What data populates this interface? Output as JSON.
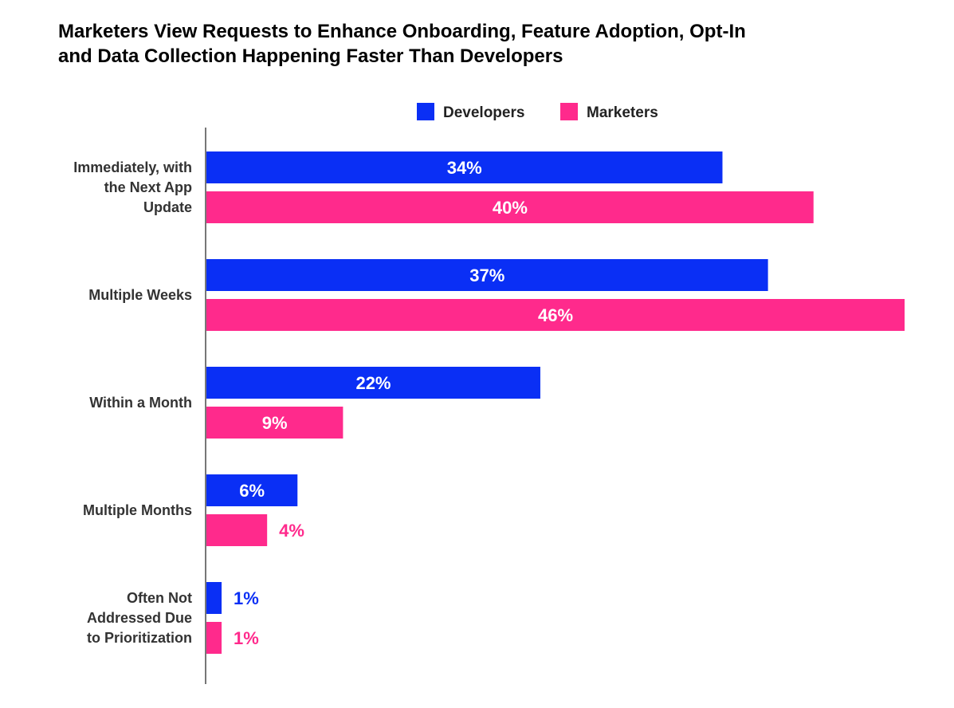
{
  "chart_data": {
    "type": "bar",
    "orientation": "horizontal",
    "title_lines": [
      "Marketers View Requests to Enhance Onboarding, Feature Adoption, Opt-In",
      "and Data Collection Happening Faster Than Developers"
    ],
    "categories": [
      [
        "Immediately, with",
        "the Next App",
        "Update"
      ],
      [
        "Multiple  Weeks"
      ],
      [
        "Within a Month"
      ],
      [
        "Multiple Months"
      ],
      [
        "Often Not",
        "Addressed Due",
        "to Prioritization"
      ]
    ],
    "series": [
      {
        "name": "Developers",
        "color": "#0a2ff5",
        "values": [
          34,
          37,
          22,
          6,
          1
        ],
        "labels": [
          "34%",
          "37%",
          "22%",
          "6%",
          "1%"
        ]
      },
      {
        "name": "Marketers",
        "color": "#ff2a8c",
        "values": [
          40,
          46,
          9,
          4,
          1
        ],
        "labels": [
          "40%",
          "46%",
          "9%",
          "4%",
          "1%"
        ]
      }
    ],
    "legend_position": "top-center",
    "grid": false,
    "xlim": [
      0,
      46
    ]
  }
}
